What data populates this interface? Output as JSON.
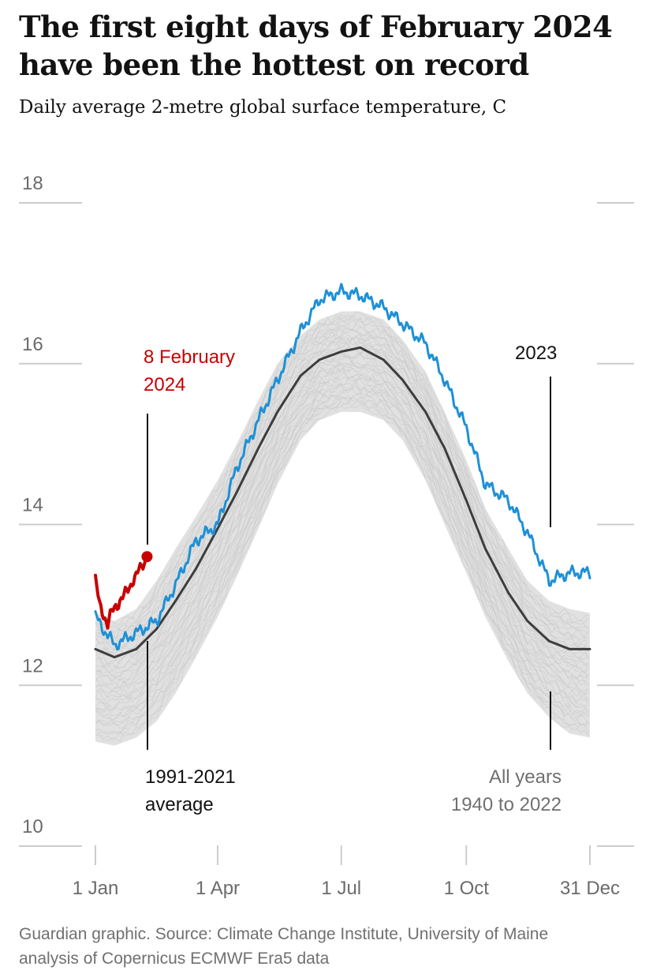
{
  "header": {
    "title_line1": "The first eight days of February 2024",
    "title_line2": "have been the hottest on record",
    "subtitle": "Daily average 2-metre global surface temperature, C"
  },
  "footer": {
    "line1": "Guardian graphic. Source: Climate Change Institute, University of Maine",
    "line2": "analysis of Copernicus ECMWF Era5 data"
  },
  "annotations": {
    "feb8_line1": "8 February",
    "feb8_line2": "2024",
    "y2023": "2023",
    "avg_line1": "1991-2021",
    "avg_line2": "average",
    "all_line1": "All years",
    "all_line2": "1940 to 2022"
  },
  "colors": {
    "year2024": "#c70000",
    "year2023": "#1e90d6",
    "average": "#3d3d3d",
    "all_years": "#dcdcdc",
    "grid": "#cccccc",
    "text": "#121212",
    "muted": "#707070"
  },
  "chart_data": {
    "type": "line",
    "title": "The first eight days of February 2024 have been the hottest on record",
    "subtitle": "Daily average 2-metre global surface temperature, C",
    "xlabel": "",
    "ylabel": "",
    "x_unit": "day of year",
    "xlim": [
      1,
      365
    ],
    "ylim": [
      10,
      18
    ],
    "y_ticks": [
      10,
      12,
      14,
      16,
      18
    ],
    "x_ticks": [
      {
        "label": "1 Jan",
        "day": 1
      },
      {
        "label": "1 Apr",
        "day": 91
      },
      {
        "label": "1 Jul",
        "day": 182
      },
      {
        "label": "1 Oct",
        "day": 274
      },
      {
        "label": "31 Dec",
        "day": 365
      }
    ],
    "grid": "horizontal",
    "series": [
      {
        "name": "2024",
        "color": "#c70000",
        "x": [
          1,
          4,
          7,
          10,
          13,
          16,
          19,
          22,
          25,
          28,
          31,
          34,
          37,
          39
        ],
        "values": [
          13.3,
          13.0,
          12.9,
          12.75,
          12.9,
          13.0,
          13.05,
          13.1,
          13.2,
          13.3,
          13.35,
          13.45,
          13.55,
          13.6
        ]
      },
      {
        "name": "2023",
        "color": "#1e90d6",
        "x": [
          1,
          15,
          31,
          46,
          60,
          75,
          91,
          105,
          121,
          135,
          152,
          166,
          182,
          196,
          213,
          227,
          244,
          258,
          274,
          288,
          305,
          319,
          335,
          350,
          365
        ],
        "values": [
          12.85,
          12.5,
          12.65,
          12.8,
          13.25,
          13.8,
          14.0,
          14.7,
          15.3,
          15.8,
          16.4,
          16.8,
          16.9,
          16.85,
          16.7,
          16.5,
          16.25,
          15.8,
          15.2,
          14.5,
          14.3,
          13.9,
          13.3,
          13.4,
          13.4
        ]
      },
      {
        "name": "1991-2021 average",
        "color": "#3d3d3d",
        "x": [
          1,
          15,
          31,
          46,
          60,
          75,
          91,
          105,
          121,
          135,
          152,
          166,
          182,
          196,
          213,
          227,
          244,
          258,
          274,
          288,
          305,
          319,
          335,
          350,
          365
        ],
        "values": [
          12.45,
          12.35,
          12.45,
          12.7,
          13.05,
          13.45,
          13.95,
          14.4,
          14.95,
          15.4,
          15.85,
          16.05,
          16.15,
          16.2,
          16.05,
          15.8,
          15.4,
          14.95,
          14.3,
          13.7,
          13.15,
          12.8,
          12.55,
          12.45,
          12.45
        ]
      },
      {
        "name": "All years 1940 to 2022",
        "color": "#dcdcdc",
        "x": [
          1,
          15,
          31,
          46,
          60,
          75,
          91,
          105,
          121,
          135,
          152,
          166,
          182,
          196,
          213,
          227,
          244,
          258,
          274,
          288,
          305,
          319,
          335,
          350,
          365
        ],
        "upper": [
          12.9,
          12.8,
          12.95,
          13.3,
          13.7,
          14.1,
          14.55,
          15.0,
          15.55,
          16.0,
          16.35,
          16.55,
          16.65,
          16.65,
          16.55,
          16.3,
          15.9,
          15.4,
          14.8,
          14.2,
          13.7,
          13.3,
          13.05,
          12.95,
          12.9
        ],
        "lower": [
          11.3,
          11.25,
          11.35,
          11.55,
          11.9,
          12.35,
          12.85,
          13.35,
          13.95,
          14.5,
          15.05,
          15.3,
          15.4,
          15.4,
          15.3,
          15.05,
          14.55,
          14.0,
          13.4,
          12.85,
          12.3,
          11.9,
          11.6,
          11.4,
          11.35
        ]
      }
    ]
  }
}
